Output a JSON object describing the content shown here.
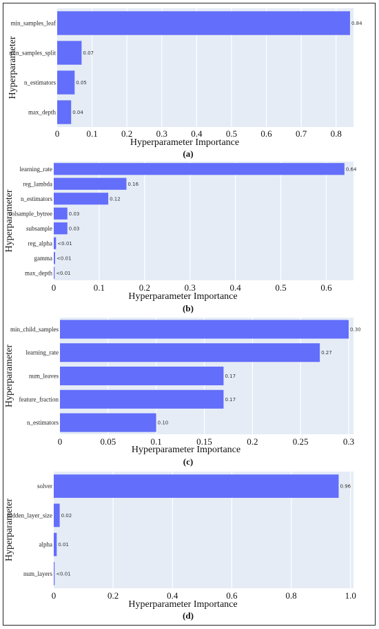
{
  "chart_data": [
    {
      "type": "bar",
      "orientation": "horizontal",
      "panel_label": "(a)",
      "xlabel": "Hyperparameter Importance",
      "ylabel": "Hyperparameter",
      "categories": [
        "min_samples_leaf",
        "min_samples_split",
        "n_estimators",
        "max_depth"
      ],
      "values": [
        0.84,
        0.07,
        0.05,
        0.04
      ],
      "value_labels": [
        "0.84",
        "0.07",
        "0.05",
        "0.04"
      ],
      "xlim": [
        0,
        0.85
      ],
      "xticks": [
        0,
        0.1,
        0.2,
        0.3,
        0.4,
        0.5,
        0.6,
        0.7,
        0.8
      ],
      "xtick_labels": [
        "0",
        "0.1",
        "0.2",
        "0.3",
        "0.4",
        "0.5",
        "0.6",
        "0.7",
        "0.8"
      ],
      "bar_color": "#636efa",
      "plot_bg": "#e5ecf6",
      "grid": true
    },
    {
      "type": "bar",
      "orientation": "horizontal",
      "panel_label": "(b)",
      "xlabel": "Hyperparameter Importance",
      "ylabel": "Hyperparameter",
      "categories": [
        "learning_rate",
        "reg_lambda",
        "n_estimators",
        "colsample_bytree",
        "subsample",
        "reg_alpha",
        "gamma",
        "max_depth"
      ],
      "values": [
        0.64,
        0.16,
        0.12,
        0.03,
        0.03,
        0.005,
        0.003,
        0.001
      ],
      "value_labels": [
        "0.64",
        "0.16",
        "0.12",
        "0.03",
        "0.03",
        "<0.01",
        "<0.01",
        "<0.01"
      ],
      "xlim": [
        0,
        0.66
      ],
      "xticks": [
        0,
        0.1,
        0.2,
        0.3,
        0.4,
        0.5,
        0.6
      ],
      "xtick_labels": [
        "0",
        "0.1",
        "0.2",
        "0.3",
        "0.4",
        "0.5",
        "0.6"
      ],
      "bar_color": "#636efa",
      "plot_bg": "#e5ecf6",
      "grid": true
    },
    {
      "type": "bar",
      "orientation": "horizontal",
      "panel_label": "(c)",
      "xlabel": "Hyperparameter Importance",
      "ylabel": "Hyperparameter",
      "categories": [
        "min_child_samples",
        "learning_rate",
        "num_leaves",
        "feature_fraction",
        "n_estimators"
      ],
      "values": [
        0.3,
        0.27,
        0.17,
        0.17,
        0.1
      ],
      "value_labels": [
        "0.30",
        "0.27",
        "0.17",
        "0.17",
        "0.10"
      ],
      "xlim": [
        0,
        0.305
      ],
      "xticks": [
        0,
        0.05,
        0.1,
        0.15,
        0.2,
        0.25,
        0.3
      ],
      "xtick_labels": [
        "0",
        "0.05",
        "0.1",
        "0.15",
        "0.2",
        "0.25",
        "0.3"
      ],
      "bar_color": "#636efa",
      "plot_bg": "#e5ecf6",
      "grid": true
    },
    {
      "type": "bar",
      "orientation": "horizontal",
      "panel_label": "(d)",
      "xlabel": "Hyperparameter Importance",
      "ylabel": "Hyperparameter",
      "categories": [
        "solver",
        "hidden_layer_size",
        "alpha",
        "num_layers"
      ],
      "values": [
        0.96,
        0.02,
        0.01,
        0.002
      ],
      "value_labels": [
        "0.96",
        "0.02",
        "0.01",
        "<0.01"
      ],
      "xlim": [
        0,
        1.01
      ],
      "xticks": [
        0,
        0.2,
        0.4,
        0.6,
        0.8,
        1
      ],
      "xtick_labels": [
        "0",
        "0.2",
        "0.4",
        "0.6",
        "0.8",
        "1.0"
      ],
      "bar_color": "#636efa",
      "plot_bg": "#e5ecf6",
      "grid": true
    }
  ]
}
